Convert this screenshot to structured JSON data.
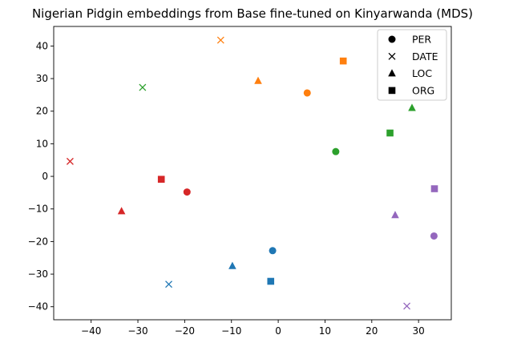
{
  "chart_data": {
    "type": "scatter",
    "title": "Nigerian Pidgin embeddings from Base fine-tuned on Kinyarwanda (MDS)",
    "xlabel": "",
    "ylabel": "",
    "xlim": [
      -48,
      37
    ],
    "ylim": [
      -44,
      46
    ],
    "xticks": [
      -40,
      -30,
      -20,
      -10,
      0,
      10,
      20,
      30
    ],
    "yticks": [
      -40,
      -30,
      -20,
      -10,
      0,
      10,
      20,
      30,
      40
    ],
    "xtick_labels": [
      "−40",
      "−30",
      "−20",
      "−10",
      "0",
      "10",
      "20",
      "30"
    ],
    "ytick_labels": [
      "−40",
      "−30",
      "−20",
      "−10",
      "0",
      "10",
      "20",
      "30",
      "40"
    ],
    "grid": false,
    "legend_position": "top-right",
    "legend": [
      {
        "label": "PER",
        "marker": "circle"
      },
      {
        "label": "DATE",
        "marker": "x"
      },
      {
        "label": "LOC",
        "marker": "triangle"
      },
      {
        "label": "ORG",
        "marker": "square"
      }
    ],
    "points": [
      {
        "x": -19.5,
        "y": -4.8,
        "marker": "circle",
        "color": "#d62728"
      },
      {
        "x": -44.5,
        "y": 4.6,
        "marker": "x",
        "color": "#d62728"
      },
      {
        "x": -33.5,
        "y": -10.7,
        "marker": "triangle",
        "color": "#d62728"
      },
      {
        "x": -25.0,
        "y": -0.9,
        "marker": "square",
        "color": "#d62728"
      },
      {
        "x": 6.2,
        "y": 25.6,
        "marker": "circle",
        "color": "#ff7f0e"
      },
      {
        "x": -12.3,
        "y": 41.8,
        "marker": "x",
        "color": "#ff7f0e"
      },
      {
        "x": -4.3,
        "y": 29.3,
        "marker": "triangle",
        "color": "#ff7f0e"
      },
      {
        "x": 13.9,
        "y": 35.4,
        "marker": "square",
        "color": "#ff7f0e"
      },
      {
        "x": 12.3,
        "y": 7.6,
        "marker": "circle",
        "color": "#2ca02c"
      },
      {
        "x": -29.0,
        "y": 27.3,
        "marker": "x",
        "color": "#2ca02c"
      },
      {
        "x": 28.6,
        "y": 21.0,
        "marker": "triangle",
        "color": "#2ca02c"
      },
      {
        "x": 23.9,
        "y": 13.3,
        "marker": "square",
        "color": "#2ca02c"
      },
      {
        "x": -1.2,
        "y": -22.8,
        "marker": "circle",
        "color": "#1f77b4"
      },
      {
        "x": -23.4,
        "y": -33.1,
        "marker": "x",
        "color": "#1f77b4"
      },
      {
        "x": -9.8,
        "y": -27.5,
        "marker": "triangle",
        "color": "#1f77b4"
      },
      {
        "x": -1.6,
        "y": -32.2,
        "marker": "square",
        "color": "#1f77b4"
      },
      {
        "x": 33.3,
        "y": -18.3,
        "marker": "circle",
        "color": "#9467bd"
      },
      {
        "x": 27.5,
        "y": -39.8,
        "marker": "x",
        "color": "#9467bd"
      },
      {
        "x": 25.0,
        "y": -11.9,
        "marker": "triangle",
        "color": "#9467bd"
      },
      {
        "x": 33.4,
        "y": -3.8,
        "marker": "square",
        "color": "#9467bd"
      }
    ]
  }
}
